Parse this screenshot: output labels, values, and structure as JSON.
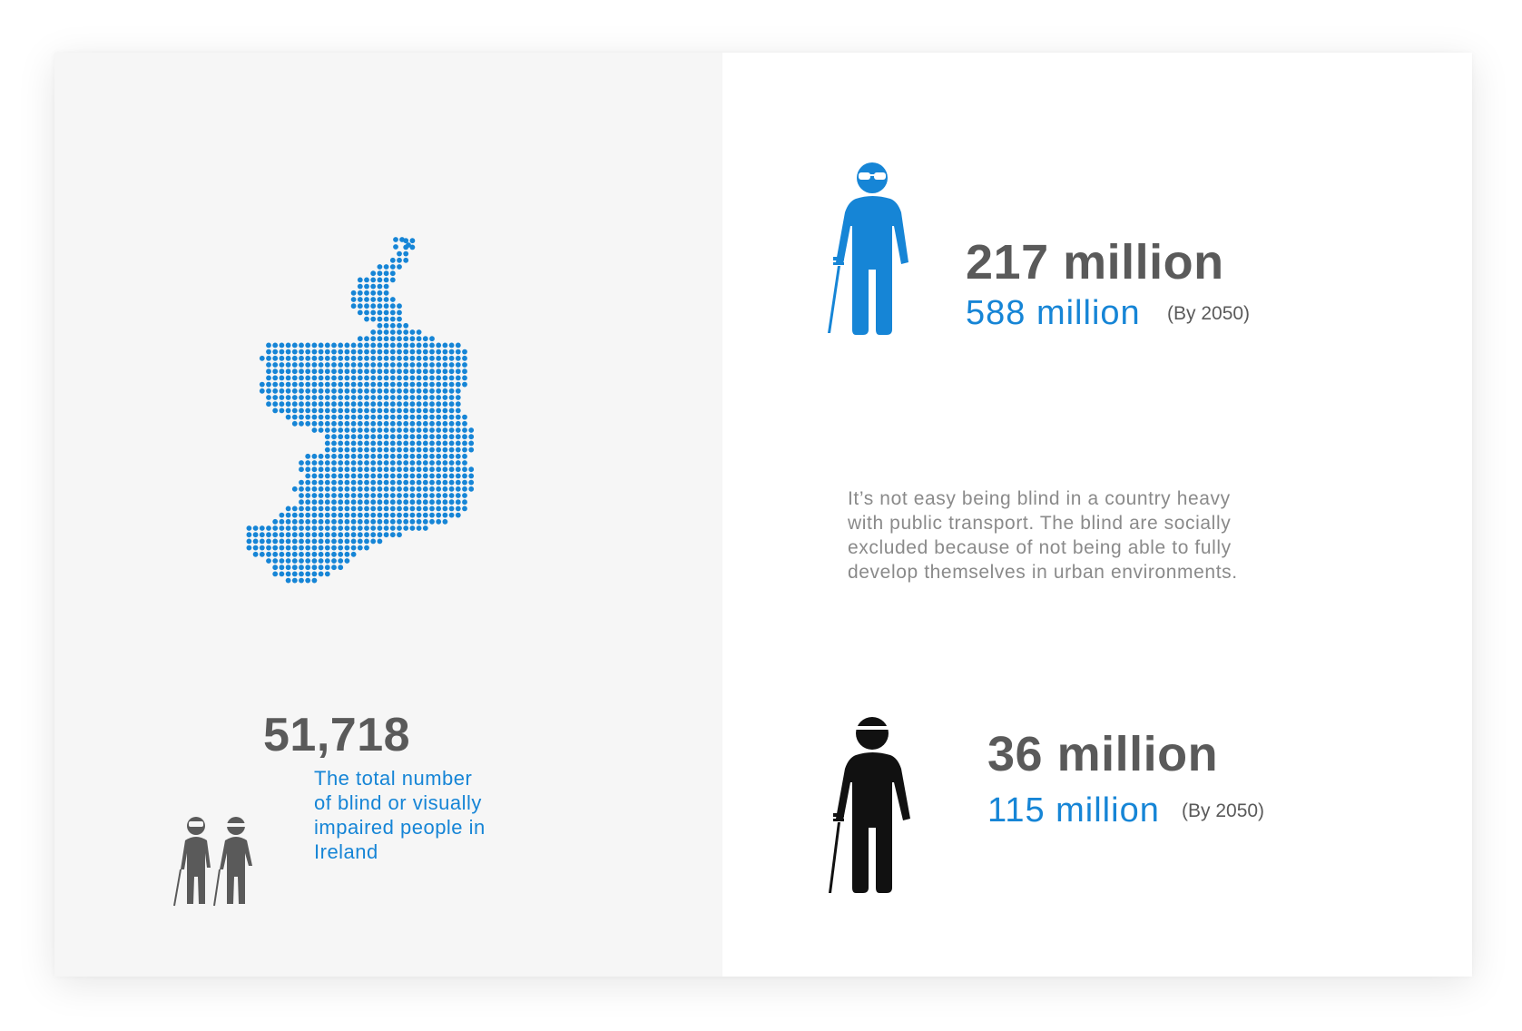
{
  "left": {
    "map_label": "ireland-dot-map",
    "ireland_count": "51,718",
    "caption": "The total number\nof blind or visually\nimpaired people in\nIreland",
    "map_color": "#1685d6",
    "icon_color": "#5a5a5a"
  },
  "right": {
    "stat1": {
      "current": "217 million",
      "projected": "588 million",
      "projected_note": "(By 2050)",
      "icon": "visually-impaired-person-icon",
      "icon_color": "#1685d6"
    },
    "paragraph": "It’s not easy being blind in a country heavy\nwith public transport. The blind are socially\nexcluded because of not being able to fully\ndevelop themselves in urban environments.",
    "stat2": {
      "current": "36 million",
      "projected": "115 million",
      "projected_note": "(By 2050)",
      "icon": "blind-person-icon",
      "icon_color": "#111111"
    }
  },
  "colors": {
    "accent": "#1685d6",
    "heading": "#5a5a5a",
    "body": "#8a8a8a",
    "left_bg": "#f6f6f6"
  }
}
